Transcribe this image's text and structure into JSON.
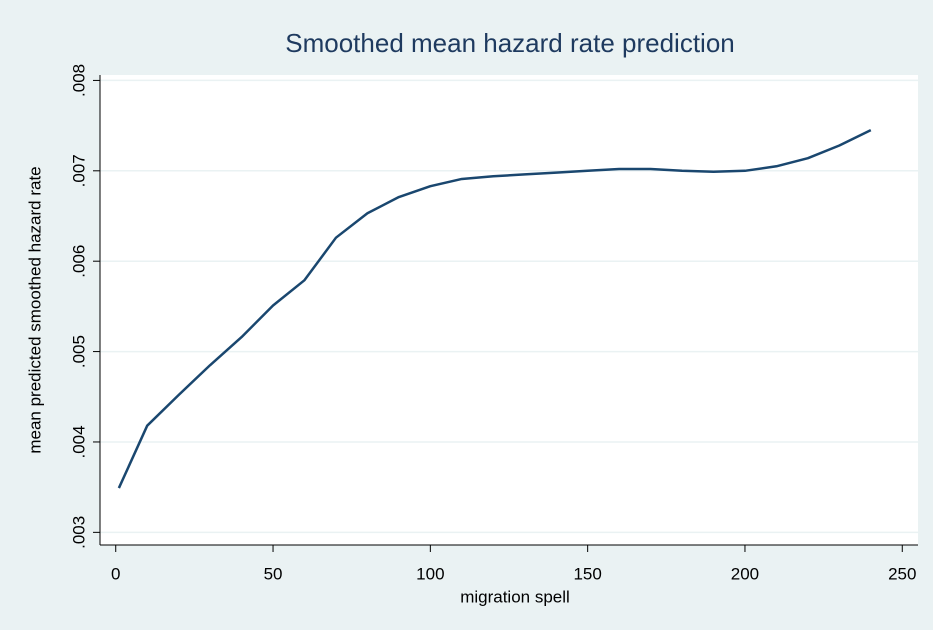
{
  "chart_data": {
    "type": "line",
    "title": "Smoothed mean hazard rate prediction",
    "x_label": "migration spell",
    "y_label": "mean predicted smoothed hazard rate",
    "series": [
      {
        "name": "mean predicted smoothed hazard rate",
        "color": "#1a476f",
        "x": [
          1,
          10,
          20,
          30,
          40,
          50,
          60,
          70,
          80,
          90,
          100,
          110,
          120,
          130,
          140,
          150,
          160,
          170,
          180,
          190,
          200,
          210,
          220,
          230,
          240
        ],
        "values": [
          0.00349,
          0.00418,
          0.00452,
          0.00485,
          0.00516,
          0.00551,
          0.00579,
          0.00626,
          0.00653,
          0.00671,
          0.00683,
          0.00691,
          0.00694,
          0.00696,
          0.00698,
          0.007,
          0.00702,
          0.00702,
          0.007,
          0.00699,
          0.007,
          0.00705,
          0.00714,
          0.00728,
          0.00745
        ]
      }
    ],
    "xlim": [
      -5,
      255
    ],
    "xticks": [
      0,
      50,
      100,
      150,
      200,
      250
    ],
    "ylim": [
      0.00286,
      0.00806
    ],
    "yticks": [
      {
        "value": 0.003,
        "label": ".003"
      },
      {
        "value": 0.004,
        "label": ".004"
      },
      {
        "value": 0.005,
        "label": ".005"
      },
      {
        "value": 0.006,
        "label": ".006"
      },
      {
        "value": 0.007,
        "label": ".007"
      },
      {
        "value": 0.008,
        "label": ".008"
      }
    ],
    "grid": true
  }
}
